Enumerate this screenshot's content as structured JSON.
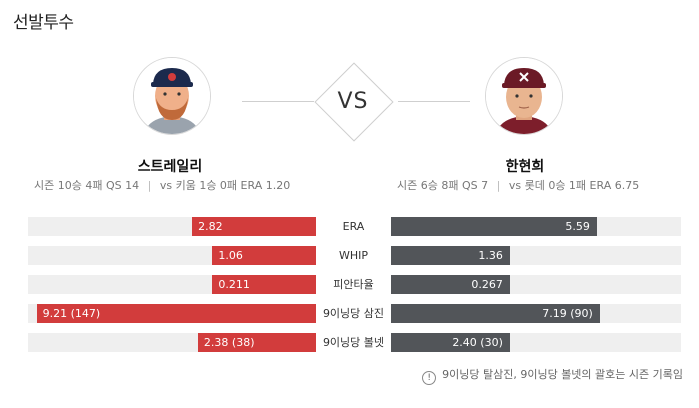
{
  "section": {
    "title": "선발투수"
  },
  "vs_label": "VS",
  "left_pitcher": {
    "name": "스트레일리",
    "season_label": "시즌",
    "season_record": "10승 4패 QS 14",
    "vs_record": "vs 키움 1승 0패 ERA 1.20",
    "accent_color": "#d23c3c"
  },
  "right_pitcher": {
    "name": "한현희",
    "season_label": "시즌",
    "season_record": "6승 8패 QS 7",
    "vs_record": "vs 롯데 0승 1패 ERA 6.75",
    "accent_color": "#525559"
  },
  "comparison": [
    {
      "label": "ERA",
      "left_value": "2.82",
      "right_value": "5.59",
      "left_fraction": 0.43,
      "right_fraction": 0.71
    },
    {
      "label": "WHIP",
      "left_value": "1.06",
      "right_value": "1.36",
      "left_fraction": 0.36,
      "right_fraction": 0.41
    },
    {
      "label": "피안타율",
      "left_value": "0.211",
      "right_value": "0.267",
      "left_fraction": 0.36,
      "right_fraction": 0.41
    },
    {
      "label": "9이닝당 삼진",
      "left_value": "9.21 (147)",
      "right_value": "7.19 (90)",
      "left_fraction": 0.97,
      "right_fraction": 0.72
    },
    {
      "label": "9이닝당 볼넷",
      "left_value": "2.38 (38)",
      "right_value": "2.40 (30)",
      "left_fraction": 0.41,
      "right_fraction": 0.41
    }
  ],
  "footnote": "9이닝당 탈삼진, 9이닝당 볼넷의 괄호는 시즌 기록임"
}
